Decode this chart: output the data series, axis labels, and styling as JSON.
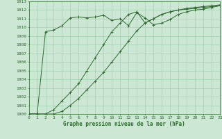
{
  "background_color": "#cce8d4",
  "grid_color": "#99ccaa",
  "line_color": "#2d6a2d",
  "xlabel": "Graphe pression niveau de la mer (hPa)",
  "xlim": [
    0,
    23
  ],
  "ylim": [
    1000,
    1013
  ],
  "yticks": [
    1000,
    1001,
    1002,
    1003,
    1004,
    1005,
    1006,
    1007,
    1008,
    1009,
    1010,
    1011,
    1012,
    1013
  ],
  "xticks": [
    0,
    1,
    2,
    3,
    4,
    5,
    6,
    7,
    8,
    9,
    10,
    11,
    12,
    13,
    14,
    15,
    16,
    17,
    18,
    19,
    20,
    21,
    22,
    23
  ],
  "series1_x": [
    0,
    1,
    2,
    3,
    4,
    5,
    6,
    7,
    8,
    9,
    10,
    11,
    12,
    13,
    14,
    15,
    16,
    17,
    18,
    19,
    20,
    21,
    22,
    23
  ],
  "series1_y": [
    1000.0,
    1000.0,
    1009.5,
    1009.7,
    1010.2,
    1011.1,
    1011.2,
    1011.1,
    1011.2,
    1011.4,
    1010.8,
    1011.0,
    1010.2,
    1011.7,
    1011.1,
    1010.3,
    1010.5,
    1010.9,
    1011.5,
    1011.8,
    1012.0,
    1012.1,
    1012.3,
    1012.5
  ],
  "series2_x": [
    0,
    1,
    2,
    3,
    4,
    5,
    6,
    7,
    8,
    9,
    10,
    11,
    12,
    13,
    14,
    15,
    16,
    17,
    18,
    19,
    20,
    21,
    22,
    23
  ],
  "series2_y": [
    1000.0,
    1000.0,
    1000.0,
    1000.5,
    1001.5,
    1002.5,
    1003.5,
    1005.0,
    1006.5,
    1008.0,
    1009.5,
    1010.5,
    1011.5,
    1011.8,
    1010.5,
    1011.0,
    1011.5,
    1011.8,
    1012.0,
    1012.1,
    1012.2,
    1012.3,
    1012.4,
    1012.5
  ],
  "series3_x": [
    0,
    1,
    2,
    3,
    4,
    5,
    6,
    7,
    8,
    9,
    10,
    11,
    12,
    13,
    14,
    15,
    16,
    17,
    18,
    19,
    20,
    21,
    22,
    23
  ],
  "series3_y": [
    1000.0,
    1000.0,
    1000.0,
    1000.0,
    1000.3,
    1001.0,
    1001.8,
    1002.8,
    1003.8,
    1004.8,
    1006.0,
    1007.2,
    1008.4,
    1009.6,
    1010.5,
    1011.0,
    1011.5,
    1011.8,
    1012.0,
    1012.2,
    1012.3,
    1012.4,
    1012.5,
    1012.6
  ],
  "tick_fontsize": 4.5,
  "xlabel_fontsize": 5.5
}
